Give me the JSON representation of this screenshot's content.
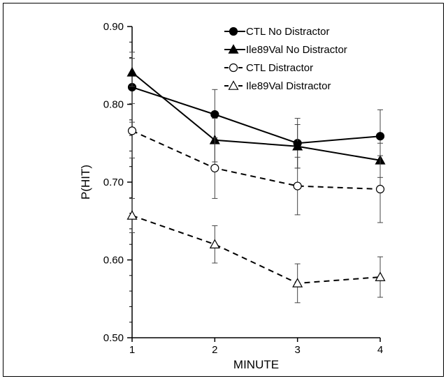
{
  "chart_data": {
    "type": "line",
    "title": "",
    "xlabel": "MINUTE",
    "ylabel": "P(HIT)",
    "x": [
      1,
      2,
      3,
      4
    ],
    "xticks": [
      "1",
      "2",
      "3",
      "4"
    ],
    "yticks": [
      "0.50",
      "0.60",
      "0.70",
      "0.80",
      "0.90"
    ],
    "xlim": [
      1,
      4
    ],
    "ylim": [
      0.5,
      0.9
    ],
    "grid": false,
    "legend_position": "top-right",
    "series": [
      {
        "name": "CTL No Distractor",
        "values": [
          0.822,
          0.787,
          0.75,
          0.759
        ],
        "errors": [
          0.045,
          0.032,
          0.032,
          0.034
        ],
        "marker": "circle-filled",
        "line": "solid"
      },
      {
        "name": "Ile89Val No Distractor",
        "values": [
          0.841,
          0.754,
          0.746,
          0.728
        ],
        "errors": [
          0.018,
          0.028,
          0.028,
          0.022
        ],
        "marker": "triangle-filled",
        "line": "solid"
      },
      {
        "name": "CTL Distractor",
        "values": [
          0.766,
          0.718,
          0.695,
          0.691
        ],
        "errors": [
          0.035,
          0.039,
          0.037,
          0.043
        ],
        "marker": "circle-open",
        "line": "dashed"
      },
      {
        "name": "Ile89Val Distractor",
        "values": [
          0.657,
          0.62,
          0.57,
          0.578
        ],
        "errors": [
          0.022,
          0.024,
          0.025,
          0.026
        ],
        "marker": "triangle-open",
        "line": "dashed"
      }
    ]
  }
}
